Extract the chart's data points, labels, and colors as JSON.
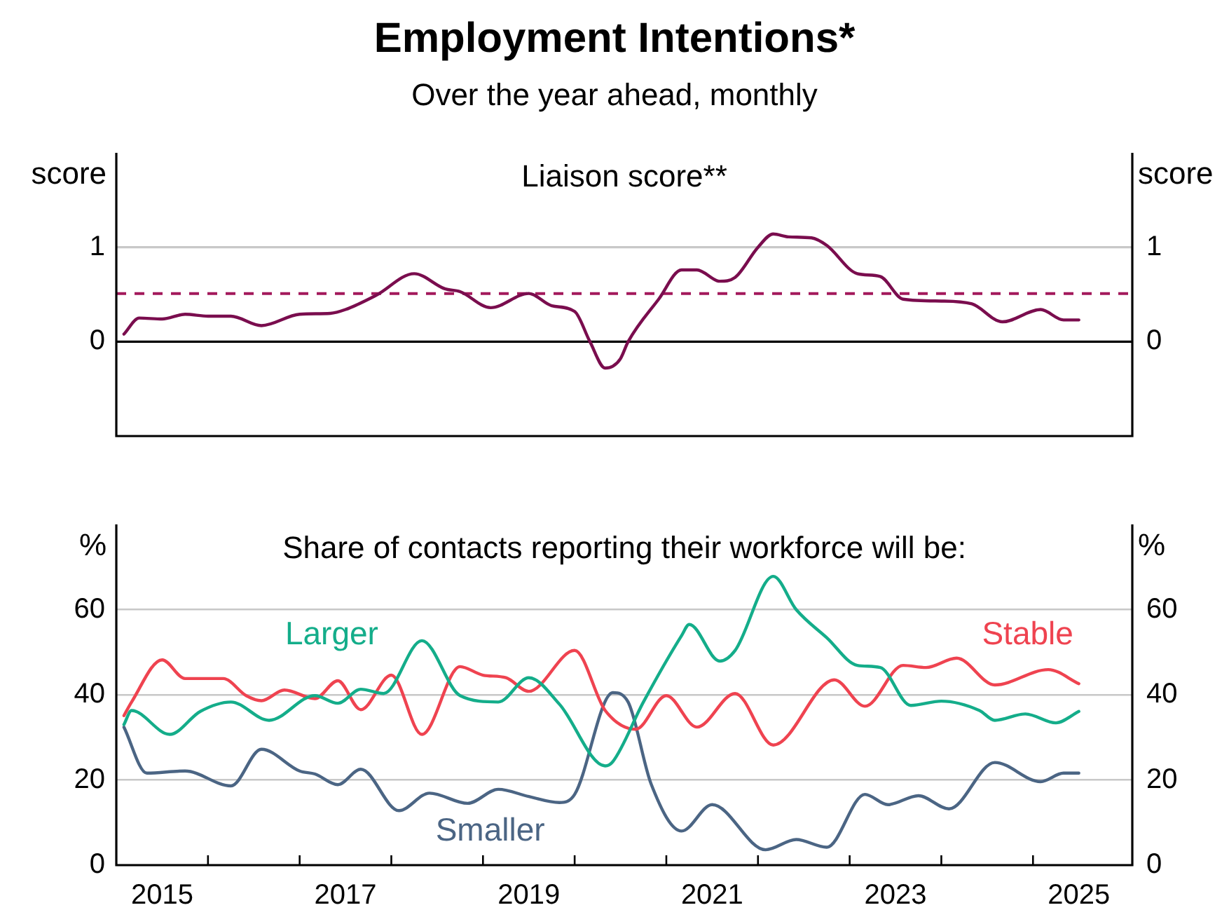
{
  "chart_data": [
    {
      "type": "line",
      "title": "Employment Intentions*",
      "subtitle": "Over the year ahead, monthly",
      "annotations": [
        "Liaison score**"
      ],
      "ylabel": "score",
      "y2label": "score",
      "xlim": [
        "2015-01",
        "2026-02"
      ],
      "ylim": [
        -1,
        2
      ],
      "yticks": [
        0,
        1
      ],
      "y2lim": [
        -1,
        2
      ],
      "y2ticks": [
        0,
        1
      ],
      "grid": false,
      "legend": false,
      "tick_labels": "y",
      "marker": "none",
      "line_style": "solid",
      "ref_lines": [
        {
          "axis": "y",
          "value": 0,
          "color": "#000000",
          "line_style": "solid"
        },
        {
          "axis": "y",
          "value": 1,
          "color": "#c8c8c8",
          "line_style": "solid"
        },
        {
          "axis": "y",
          "value": 0.51,
          "color": "#a3195b",
          "line_style": "dashed"
        }
      ],
      "series": [
        {
          "color": "#7a0d4e",
          "x": [
            "2015-02",
            "2015-04",
            "2015-07",
            "2015-10",
            "2016-01",
            "2016-04",
            "2016-08",
            "2017-01",
            "2017-05",
            "2017-07",
            "2017-11",
            "2018-04",
            "2018-08",
            "2018-10",
            "2019-02",
            "2019-07",
            "2019-10",
            "2020-01",
            "2020-03",
            "2020-05",
            "2020-06",
            "2020-07",
            "2020-08",
            "2020-12",
            "2021-03",
            "2021-05",
            "2021-08",
            "2021-10",
            "2022-01",
            "2022-03",
            "2022-05",
            "2022-08",
            "2022-10",
            "2023-02",
            "2023-05",
            "2023-08",
            "2024-01",
            "2024-05",
            "2024-09",
            "2025-02",
            "2025-05",
            "2025-07"
          ],
          "values": [
            0.08,
            0.25,
            0.24,
            0.29,
            0.27,
            0.27,
            0.17,
            0.29,
            0.3,
            0.34,
            0.49,
            0.72,
            0.56,
            0.53,
            0.36,
            0.51,
            0.38,
            0.32,
            0.0,
            -0.28,
            -0.26,
            -0.18,
            0.0,
            0.45,
            0.76,
            0.76,
            0.64,
            0.68,
            1.0,
            1.14,
            1.11,
            1.1,
            1.02,
            0.72,
            0.69,
            0.45,
            0.43,
            0.4,
            0.21,
            0.34,
            0.23,
            0.23
          ]
        }
      ]
    },
    {
      "type": "line",
      "title": "Share of contacts reporting their workforce will be:",
      "ylabel": "%",
      "y2label": "%",
      "xlim": [
        "2015-01",
        "2026-02"
      ],
      "xticks": [
        {
          "value": "2015-07",
          "label": "2015"
        },
        {
          "value": "2016-01",
          "label": null
        },
        {
          "value": "2017-01",
          "label": null
        },
        {
          "value": "2017-07",
          "label": "2017"
        },
        {
          "value": "2018-01",
          "label": null
        },
        {
          "value": "2019-01",
          "label": null
        },
        {
          "value": "2019-07",
          "label": "2019"
        },
        {
          "value": "2020-01",
          "label": null
        },
        {
          "value": "2021-01",
          "label": null
        },
        {
          "value": "2021-07",
          "label": "2021"
        },
        {
          "value": "2022-01",
          "label": null
        },
        {
          "value": "2023-01",
          "label": null
        },
        {
          "value": "2023-07",
          "label": "2023"
        },
        {
          "value": "2024-01",
          "label": null
        },
        {
          "value": "2025-01",
          "label": null
        },
        {
          "value": "2025-07",
          "label": "2025"
        }
      ],
      "ylim": [
        0,
        80
      ],
      "yticks": [
        0,
        20,
        40,
        60
      ],
      "y2lim": [
        0,
        80
      ],
      "y2ticks": [
        0,
        20,
        40,
        60
      ],
      "grid": "y",
      "legend": false,
      "marker": "none",
      "line_style": "solid",
      "series": [
        {
          "name": "Larger",
          "color": "#14ad8a",
          "x": [
            "2015-02",
            "2015-03",
            "2015-08",
            "2015-12",
            "2016-04",
            "2016-09",
            "2017-03",
            "2017-06",
            "2017-09",
            "2017-12",
            "2018-05",
            "2018-10",
            "2019-03",
            "2019-07",
            "2019-11",
            "2020-05",
            "2020-06",
            "2020-10",
            "2021-03",
            "2021-04",
            "2021-08",
            "2021-10",
            "2022-03",
            "2022-06",
            "2022-10",
            "2023-02",
            "2023-05",
            "2023-09",
            "2024-01",
            "2024-06",
            "2024-08",
            "2024-12",
            "2025-04",
            "2025-07"
          ],
          "values": [
            33.0,
            36.3,
            30.7,
            36.1,
            38.3,
            34.0,
            39.8,
            38.0,
            41.3,
            40.3,
            52.7,
            39.8,
            38.3,
            44.0,
            37.8,
            23.3,
            24.3,
            38.3,
            53.9,
            56.5,
            47.9,
            50.4,
            67.8,
            60.0,
            53.4,
            46.9,
            46.4,
            37.5,
            38.5,
            36.3,
            34.0,
            35.5,
            33.4,
            36.1
          ]
        },
        {
          "name": "Stable",
          "color": "#ef4350",
          "x": [
            "2015-02",
            "2015-03",
            "2015-07",
            "2015-10",
            "2016-03",
            "2016-06",
            "2016-08",
            "2016-11",
            "2017-03",
            "2017-06",
            "2017-09",
            "2018-01",
            "2018-05",
            "2018-10",
            "2019-01",
            "2019-04",
            "2019-07",
            "2020-01",
            "2020-05",
            "2020-09",
            "2021-01",
            "2021-05",
            "2021-10",
            "2022-03",
            "2022-11",
            "2023-03",
            "2023-08",
            "2023-11",
            "2024-03",
            "2024-08",
            "2025-03",
            "2025-07"
          ],
          "values": [
            35.1,
            38.3,
            48.2,
            43.8,
            43.8,
            39.8,
            38.6,
            41.1,
            39.1,
            43.3,
            36.5,
            44.6,
            30.7,
            46.6,
            44.6,
            44.0,
            40.8,
            50.4,
            36.3,
            31.9,
            39.8,
            32.4,
            40.3,
            28.2,
            43.5,
            37.3,
            46.9,
            46.4,
            48.6,
            42.3,
            45.9,
            42.6
          ]
        },
        {
          "name": "Smaller",
          "color": "#4b6584",
          "x": [
            "2015-02",
            "2015-05",
            "2015-10",
            "2016-04",
            "2016-08",
            "2017-01",
            "2017-03",
            "2017-06",
            "2017-09",
            "2018-02",
            "2018-06",
            "2018-11",
            "2019-03",
            "2019-07",
            "2019-11",
            "2020-01",
            "2020-06",
            "2020-08",
            "2020-11",
            "2021-03",
            "2021-07",
            "2022-02",
            "2022-06",
            "2022-10",
            "2023-03",
            "2023-06",
            "2023-10",
            "2024-02",
            "2024-08",
            "2025-02",
            "2025-05",
            "2025-07"
          ],
          "values": [
            32.4,
            21.6,
            22.1,
            18.6,
            27.2,
            22.1,
            21.4,
            18.9,
            22.5,
            12.8,
            16.9,
            14.5,
            17.8,
            16.1,
            14.7,
            16.6,
            40.5,
            38.3,
            19.1,
            8.0,
            14.2,
            3.6,
            6.0,
            4.2,
            16.6,
            14.2,
            16.3,
            13.2,
            24.1,
            19.6,
            21.6,
            21.6
          ]
        }
      ]
    }
  ]
}
